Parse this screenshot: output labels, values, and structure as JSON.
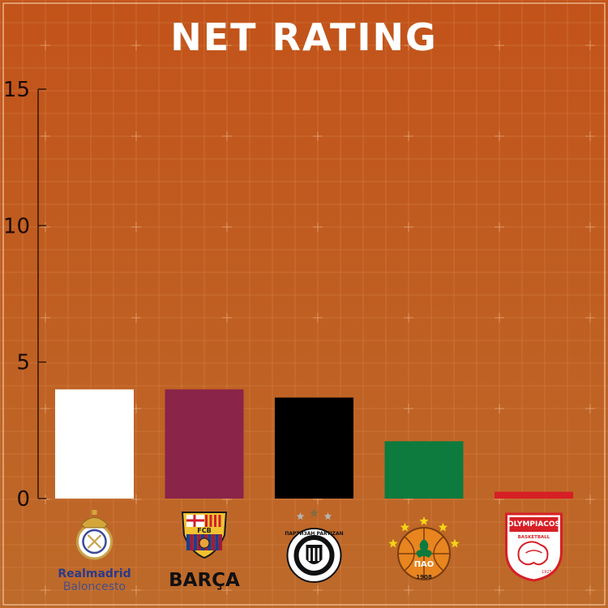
{
  "theme": {
    "bg_top": "#c2531a",
    "bg_bottom": "#bd6a2a",
    "grid": "#d9894f",
    "axis": "#3a1a08",
    "title_color": "#ffffff",
    "tick_color": "#1a0a02",
    "border": "#e9b48a"
  },
  "chart_data": {
    "type": "bar",
    "title": "NET RATING",
    "xlabel": "",
    "ylabel": "",
    "ylim": [
      0,
      15
    ],
    "yticks": [
      0,
      5,
      10,
      15
    ],
    "grid": true,
    "legend": "none",
    "categories": [
      "Real Madrid",
      "FC Barcelona",
      "Partizan",
      "Panathinaikos",
      "Olympiacos"
    ],
    "values": [
      4.0,
      4.0,
      3.7,
      2.1,
      0.25
    ],
    "colors": [
      "#ffffff",
      "#8a2449",
      "#000000",
      "#0d7a3e",
      "#d71f26"
    ]
  },
  "logos": [
    {
      "icon": "real-madrid-crest-icon",
      "line1": "Realmadrid",
      "line2": "Baloncesto"
    },
    {
      "icon": "fc-barcelona-crest-icon",
      "line1": "BARÇA",
      "line2": "",
      "crest_text": "FCB"
    },
    {
      "icon": "partizan-crest-icon",
      "line1": "",
      "line2": "",
      "crest_text": "ПАРТИЗАН PARTIZAN"
    },
    {
      "icon": "panathinaikos-crest-icon",
      "line1": "",
      "line2": "",
      "crest_text": "ΠΑΟ",
      "year": "1908"
    },
    {
      "icon": "olympiacos-crest-icon",
      "line1": "",
      "line2": "",
      "crest_text": "OLYMPIACOS",
      "crest_sub": "BASKETBALL",
      "year": "1925"
    }
  ]
}
